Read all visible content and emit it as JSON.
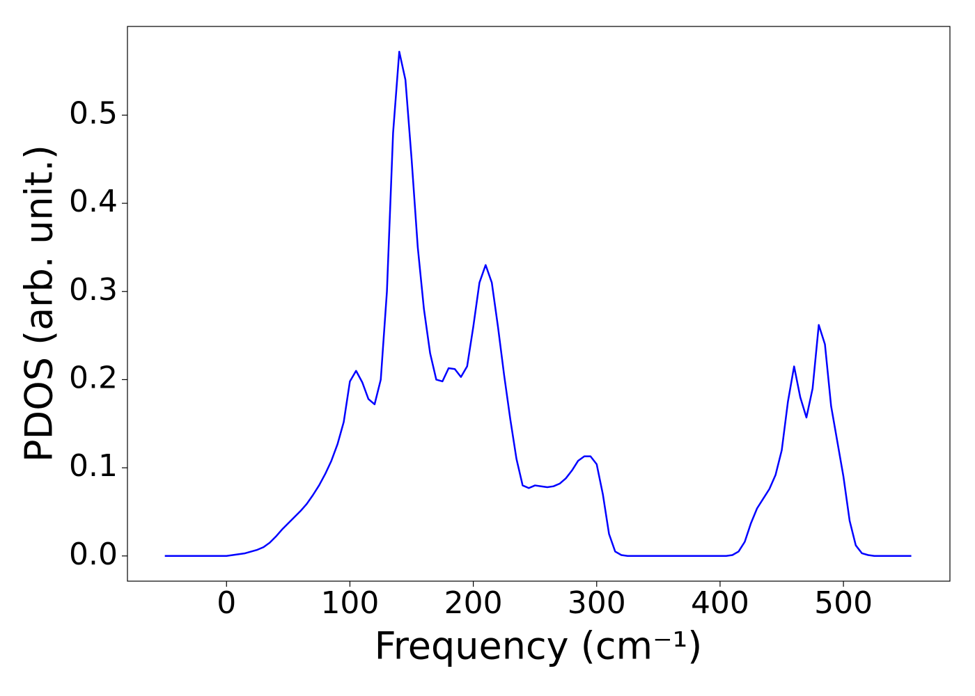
{
  "chart_data": {
    "type": "line",
    "xlabel": "Frequency (cm⁻¹)",
    "ylabel": "PDOS (arb. unit.)",
    "xlim": [
      -80.3,
      586.3
    ],
    "ylim": [
      -0.0286,
      0.6006
    ],
    "xticks": [
      0,
      100,
      200,
      300,
      400,
      500
    ],
    "yticks": [
      {
        "value": 0,
        "label": "0.0"
      },
      0.1,
      0.2,
      0.3,
      0.4,
      0.5
    ],
    "series": [
      {
        "color": "#0000ff",
        "x": [
          -50,
          -45,
          -40,
          -35,
          -30,
          -25,
          -20,
          -15,
          -10,
          -5,
          0,
          5,
          10,
          15,
          20,
          25,
          30,
          35,
          40,
          45,
          50,
          55,
          60,
          65,
          70,
          75,
          80,
          85,
          90,
          95,
          100,
          105,
          110,
          115,
          120,
          125,
          130,
          135,
          140,
          145,
          150,
          155,
          160,
          165,
          170,
          175,
          180,
          185,
          190,
          195,
          200,
          205,
          210,
          215,
          220,
          225,
          230,
          235,
          240,
          245,
          250,
          255,
          260,
          265,
          270,
          275,
          280,
          285,
          290,
          295,
          300,
          305,
          310,
          315,
          320,
          325,
          330,
          335,
          340,
          345,
          350,
          355,
          360,
          365,
          370,
          375,
          380,
          385,
          390,
          395,
          400,
          405,
          410,
          415,
          420,
          425,
          430,
          435,
          440,
          445,
          450,
          455,
          460,
          465,
          470,
          475,
          480,
          485,
          490,
          495,
          500,
          505,
          510,
          515,
          520,
          525,
          530,
          535,
          540,
          545,
          550,
          555
        ],
        "values": [
          0,
          0,
          0,
          0,
          0,
          0,
          0,
          0,
          0,
          0,
          0,
          0.001,
          0.002,
          0.003,
          0.005,
          0.007,
          0.01,
          0.015,
          0.022,
          0.03,
          0.037,
          0.044,
          0.051,
          0.059,
          0.069,
          0.08,
          0.093,
          0.108,
          0.127,
          0.152,
          0.198,
          0.21,
          0.197,
          0.178,
          0.172,
          0.2,
          0.3,
          0.48,
          0.572,
          0.54,
          0.45,
          0.35,
          0.28,
          0.23,
          0.2,
          0.198,
          0.213,
          0.212,
          0.203,
          0.215,
          0.26,
          0.31,
          0.33,
          0.31,
          0.26,
          0.205,
          0.155,
          0.11,
          0.08,
          0.077,
          0.08,
          0.079,
          0.078,
          0.079,
          0.082,
          0.088,
          0.097,
          0.108,
          0.113,
          0.113,
          0.104,
          0.07,
          0.025,
          0.005,
          0.001,
          0,
          0,
          0,
          0,
          0,
          0,
          0,
          0,
          0,
          0,
          0,
          0,
          0,
          0,
          0,
          0,
          0,
          0.001,
          0.005,
          0.016,
          0.037,
          0.054,
          0.065,
          0.076,
          0.092,
          0.12,
          0.175,
          0.215,
          0.18,
          0.157,
          0.19,
          0.262,
          0.24,
          0.17,
          0.13,
          0.09,
          0.04,
          0.012,
          0.003,
          0.001,
          0,
          0,
          0,
          0,
          0,
          0,
          0
        ]
      }
    ]
  }
}
